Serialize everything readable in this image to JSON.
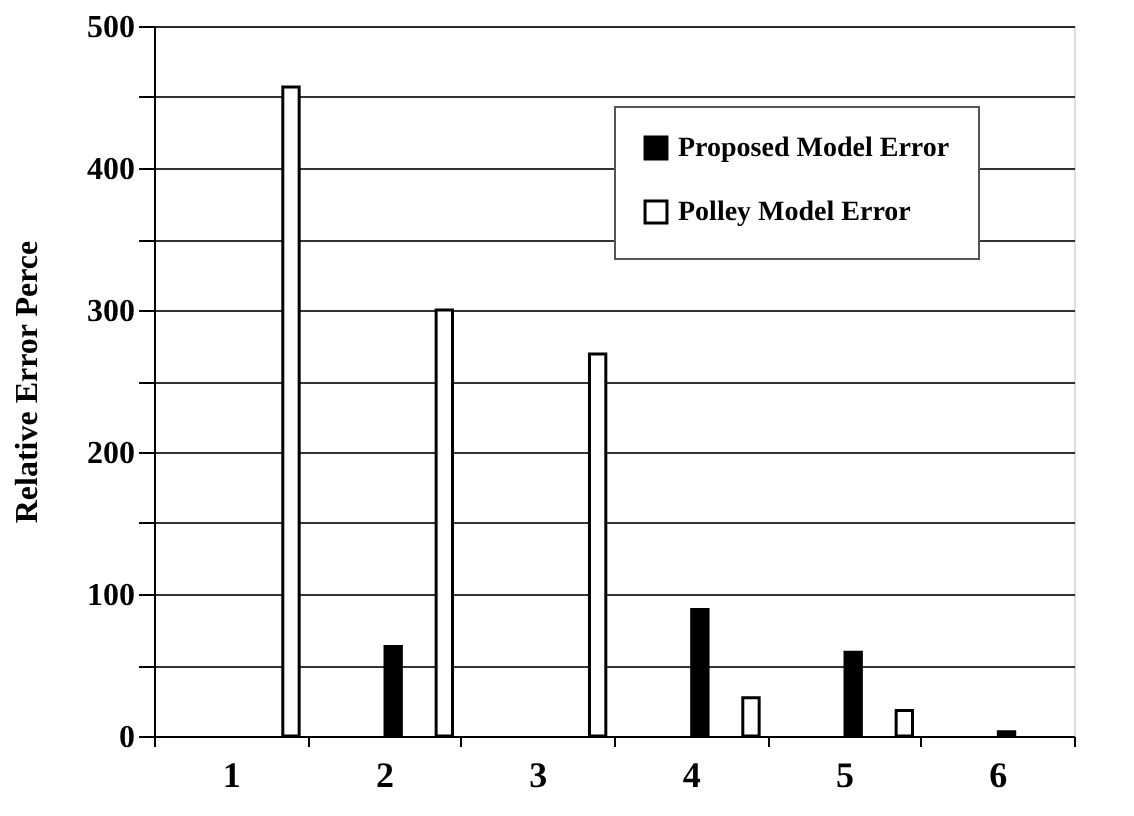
{
  "chart_data": {
    "type": "bar",
    "ylabel": "Relative Error Perce",
    "categories": [
      "1",
      "2",
      "3",
      "4",
      "5",
      "6"
    ],
    "series": [
      {
        "name": "Proposed Model Error",
        "color": "#000000",
        "values": [
          null,
          63,
          null,
          89,
          59,
          3
        ]
      },
      {
        "name": "Polley Model Error",
        "color": "#ffffff",
        "values": [
          457,
          300,
          269,
          27,
          18,
          null
        ]
      }
    ],
    "ylim": [
      0,
      500
    ],
    "yticks": [
      0,
      {
        "value": 50,
        "label": null
      },
      100,
      {
        "value": 150,
        "label": null
      },
      200,
      {
        "value": 250,
        "label": null
      },
      300,
      {
        "value": 350,
        "label": null
      },
      400,
      {
        "value": 450,
        "label": null
      },
      500
    ],
    "grid": "y",
    "legend": "top right"
  }
}
